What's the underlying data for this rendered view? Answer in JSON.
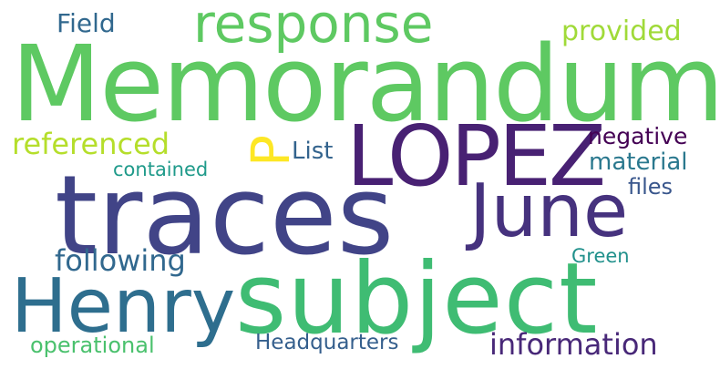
{
  "words": {
    "memorandum": {
      "text": "Memorandum",
      "color": "#5ec962"
    },
    "traces": {
      "text": "traces",
      "color": "#414487"
    },
    "subject": {
      "text": "subject",
      "color": "#3fbc73"
    },
    "lopez": {
      "text": "LOPEZ",
      "color": "#482173"
    },
    "june": {
      "text": "June",
      "color": "#46327e"
    },
    "henry": {
      "text": "Henry",
      "color": "#2e6e8e"
    },
    "response": {
      "text": "response",
      "color": "#5ec962"
    },
    "p": {
      "text": "P",
      "color": "#fde725"
    },
    "referenced": {
      "text": "referenced",
      "color": "#b5de2b"
    },
    "following": {
      "text": "following",
      "color": "#31688e"
    },
    "information": {
      "text": "information",
      "color": "#482878"
    },
    "headquarters": {
      "text": "Headquarters",
      "color": "#355f8d"
    },
    "field": {
      "text": "Field",
      "color": "#31688e"
    },
    "provided": {
      "text": "provided",
      "color": "#a0da39"
    },
    "negative": {
      "text": "negative",
      "color": "#440154"
    },
    "material": {
      "text": "material",
      "color": "#2a788e"
    },
    "files": {
      "text": "files",
      "color": "#39568c"
    },
    "list": {
      "text": "List",
      "color": "#33638d"
    },
    "contained": {
      "text": "contained",
      "color": "#1f9a8a"
    },
    "green": {
      "text": "Green",
      "color": "#21918c"
    },
    "operational": {
      "text": "operational",
      "color": "#4ac16d"
    }
  }
}
